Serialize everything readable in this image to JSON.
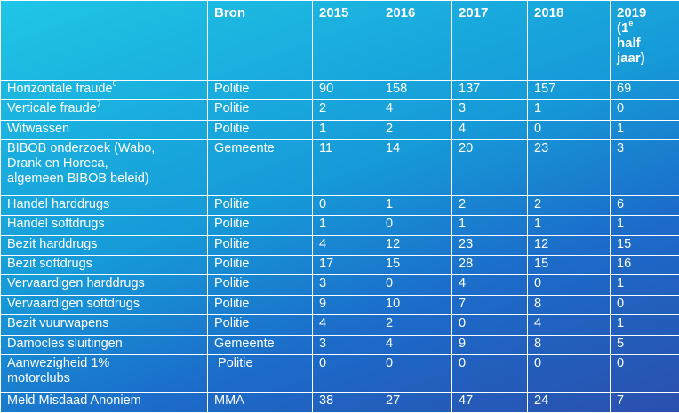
{
  "headers": {
    "category": "",
    "source": "Bron",
    "y2015": "2015",
    "y2016": "2016",
    "y2017": "2017",
    "y2018": "2018",
    "y2019_line1": "2019",
    "y2019_line2": "(1",
    "y2019_sup": "e",
    "y2019_line3": "half",
    "y2019_line4": "jaar)"
  },
  "rows": [
    {
      "category": "Horizontale fraude",
      "sup": "6",
      "source": "Politie",
      "v2015": "90",
      "v2016": "158",
      "v2017": "137",
      "v2018": "157",
      "v2019": "69"
    },
    {
      "category": "Verticale fraude",
      "sup": "7",
      "source": "Politie",
      "v2015": "2",
      "v2016": "4",
      "v2017": "3",
      "v2018": "1",
      "v2019": "0"
    },
    {
      "category": "Witwassen",
      "sup": "",
      "source": "Politie",
      "v2015": "1",
      "v2016": "2",
      "v2017": "4",
      "v2018": "0",
      "v2019": "1"
    },
    {
      "category_lines": [
        "BIBOB onderzoek (Wabo,",
        "Drank en Horeca,",
        "algemeen BIBOB beleid)"
      ],
      "source": "Gemeente",
      "v2015": "11",
      "v2016": "14",
      "v2017": "20",
      "v2018": "23",
      "v2019": "3"
    },
    {
      "category": "Handel harddrugs",
      "sup": "",
      "source": "Politie",
      "v2015": "0",
      "v2016": "1",
      "v2017": "2",
      "v2018": "2",
      "v2019": "6"
    },
    {
      "category": "Handel softdrugs",
      "sup": "",
      "source": "Politie",
      "v2015": "1",
      "v2016": "0",
      "v2017": "1",
      "v2018": "1",
      "v2019": "1"
    },
    {
      "category": "Bezit harddrugs",
      "sup": "",
      "source": "Politie",
      "v2015": "4",
      "v2016": "12",
      "v2017": "23",
      "v2018": "12",
      "v2019": "15"
    },
    {
      "category": "Bezit softdrugs",
      "sup": "",
      "source": "Politie",
      "v2015": "17",
      "v2016": "15",
      "v2017": "28",
      "v2018": "15",
      "v2019": "16"
    },
    {
      "category": "Vervaardigen harddrugs",
      "sup": "",
      "source": "Politie",
      "v2015": "3",
      "v2016": "0",
      "v2017": "4",
      "v2018": "0",
      "v2019": "1"
    },
    {
      "category": "Vervaardigen softdrugs",
      "sup": "",
      "source": "Politie",
      "v2015": "9",
      "v2016": "10",
      "v2017": "7",
      "v2018": "8",
      "v2019": "0"
    },
    {
      "category": "Bezit vuurwapens",
      "sup": "",
      "source": "Politie",
      "v2015": "4",
      "v2016": "2",
      "v2017": "0",
      "v2018": "4",
      "v2019": "1"
    },
    {
      "category": "Damocles sluitingen",
      "sup": "",
      "source": "Gemeente",
      "v2015": "3",
      "v2016": "4",
      "v2017": "9",
      "v2018": "8",
      "v2019": "5"
    },
    {
      "category_lines": [
        "Aanwezigheid 1%",
        "motorclubs"
      ],
      "source": " Politie",
      "v2015": "0",
      "v2016": "0",
      "v2017": "0",
      "v2018": "0",
      "v2019": "0"
    },
    {
      "category": "Meld Misdaad Anoniem",
      "sup": "",
      "source": "MMA",
      "v2015": "38",
      "v2016": "27",
      "v2017": "47",
      "v2018": "24",
      "v2019": "7"
    }
  ]
}
